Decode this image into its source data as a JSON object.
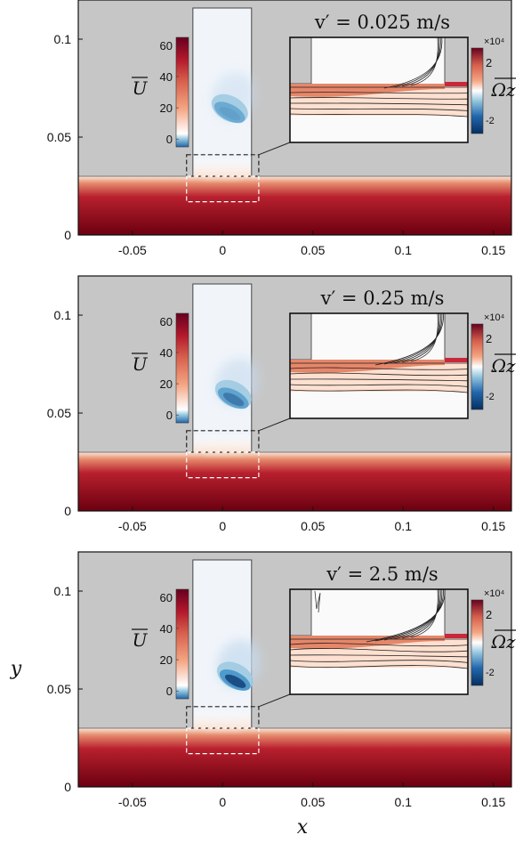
{
  "chart_data": [
    {
      "type": "heatmap",
      "annotation": "v′ = 0.025 m/s",
      "xlim": [
        -0.08,
        0.16
      ],
      "ylim": [
        0,
        0.12
      ],
      "x_ticks": [
        "-0.05",
        "0",
        "0.05",
        "0.1",
        "0.15"
      ],
      "y_ticks": [
        "0",
        "0.05",
        "0.1"
      ],
      "colorbar_U": {
        "label": "U",
        "ticks": [
          "60",
          "40",
          "20",
          "0"
        ],
        "range": [
          -5,
          65
        ]
      },
      "colorbar_Omega": {
        "label": "Ωz",
        "scale": "×10⁴",
        "ticks": [
          "2",
          "-2"
        ],
        "range": [
          -3,
          3
        ]
      },
      "jet_intensity": 0.55,
      "jet_center": [
        0.003,
        0.063
      ]
    },
    {
      "type": "heatmap",
      "annotation": "v′ = 0.25 m/s",
      "xlim": [
        -0.08,
        0.16
      ],
      "ylim": [
        0,
        0.12
      ],
      "x_ticks": [
        "-0.05",
        "0",
        "0.05",
        "0.1",
        "0.15"
      ],
      "y_ticks": [
        "0",
        "0.05",
        "0.1"
      ],
      "colorbar_U": {
        "label": "U",
        "ticks": [
          "60",
          "40",
          "20",
          "0"
        ],
        "range": [
          -5,
          65
        ]
      },
      "colorbar_Omega": {
        "label": "Ωz",
        "scale": "×10⁴",
        "ticks": [
          "2",
          "-2"
        ],
        "range": [
          -3,
          3
        ]
      },
      "jet_intensity": 0.72,
      "jet_center": [
        0.005,
        0.058
      ]
    },
    {
      "type": "heatmap",
      "annotation": "v′ = 2.5 m/s",
      "xlim": [
        -0.08,
        0.16
      ],
      "ylim": [
        0,
        0.12
      ],
      "x_ticks": [
        "-0.05",
        "0",
        "0.05",
        "0.1",
        "0.15"
      ],
      "y_ticks": [
        "0",
        "0.05",
        "0.1"
      ],
      "colorbar_U": {
        "label": "U",
        "ticks": [
          "60",
          "40",
          "20",
          "0"
        ],
        "range": [
          -5,
          65
        ]
      },
      "colorbar_Omega": {
        "label": "Ωz",
        "scale": "×10⁴",
        "ticks": [
          "2",
          "-2"
        ],
        "range": [
          -3,
          3
        ]
      },
      "jet_intensity": 0.95,
      "jet_center": [
        0.006,
        0.055
      ]
    }
  ],
  "axes": {
    "xlabel": "x",
    "ylabel": "y"
  },
  "colors": {
    "background": "#c6c6c6",
    "wall": "#6b0010",
    "jet_dark": "#1f4f8f",
    "inset_red": "#d6604d"
  }
}
